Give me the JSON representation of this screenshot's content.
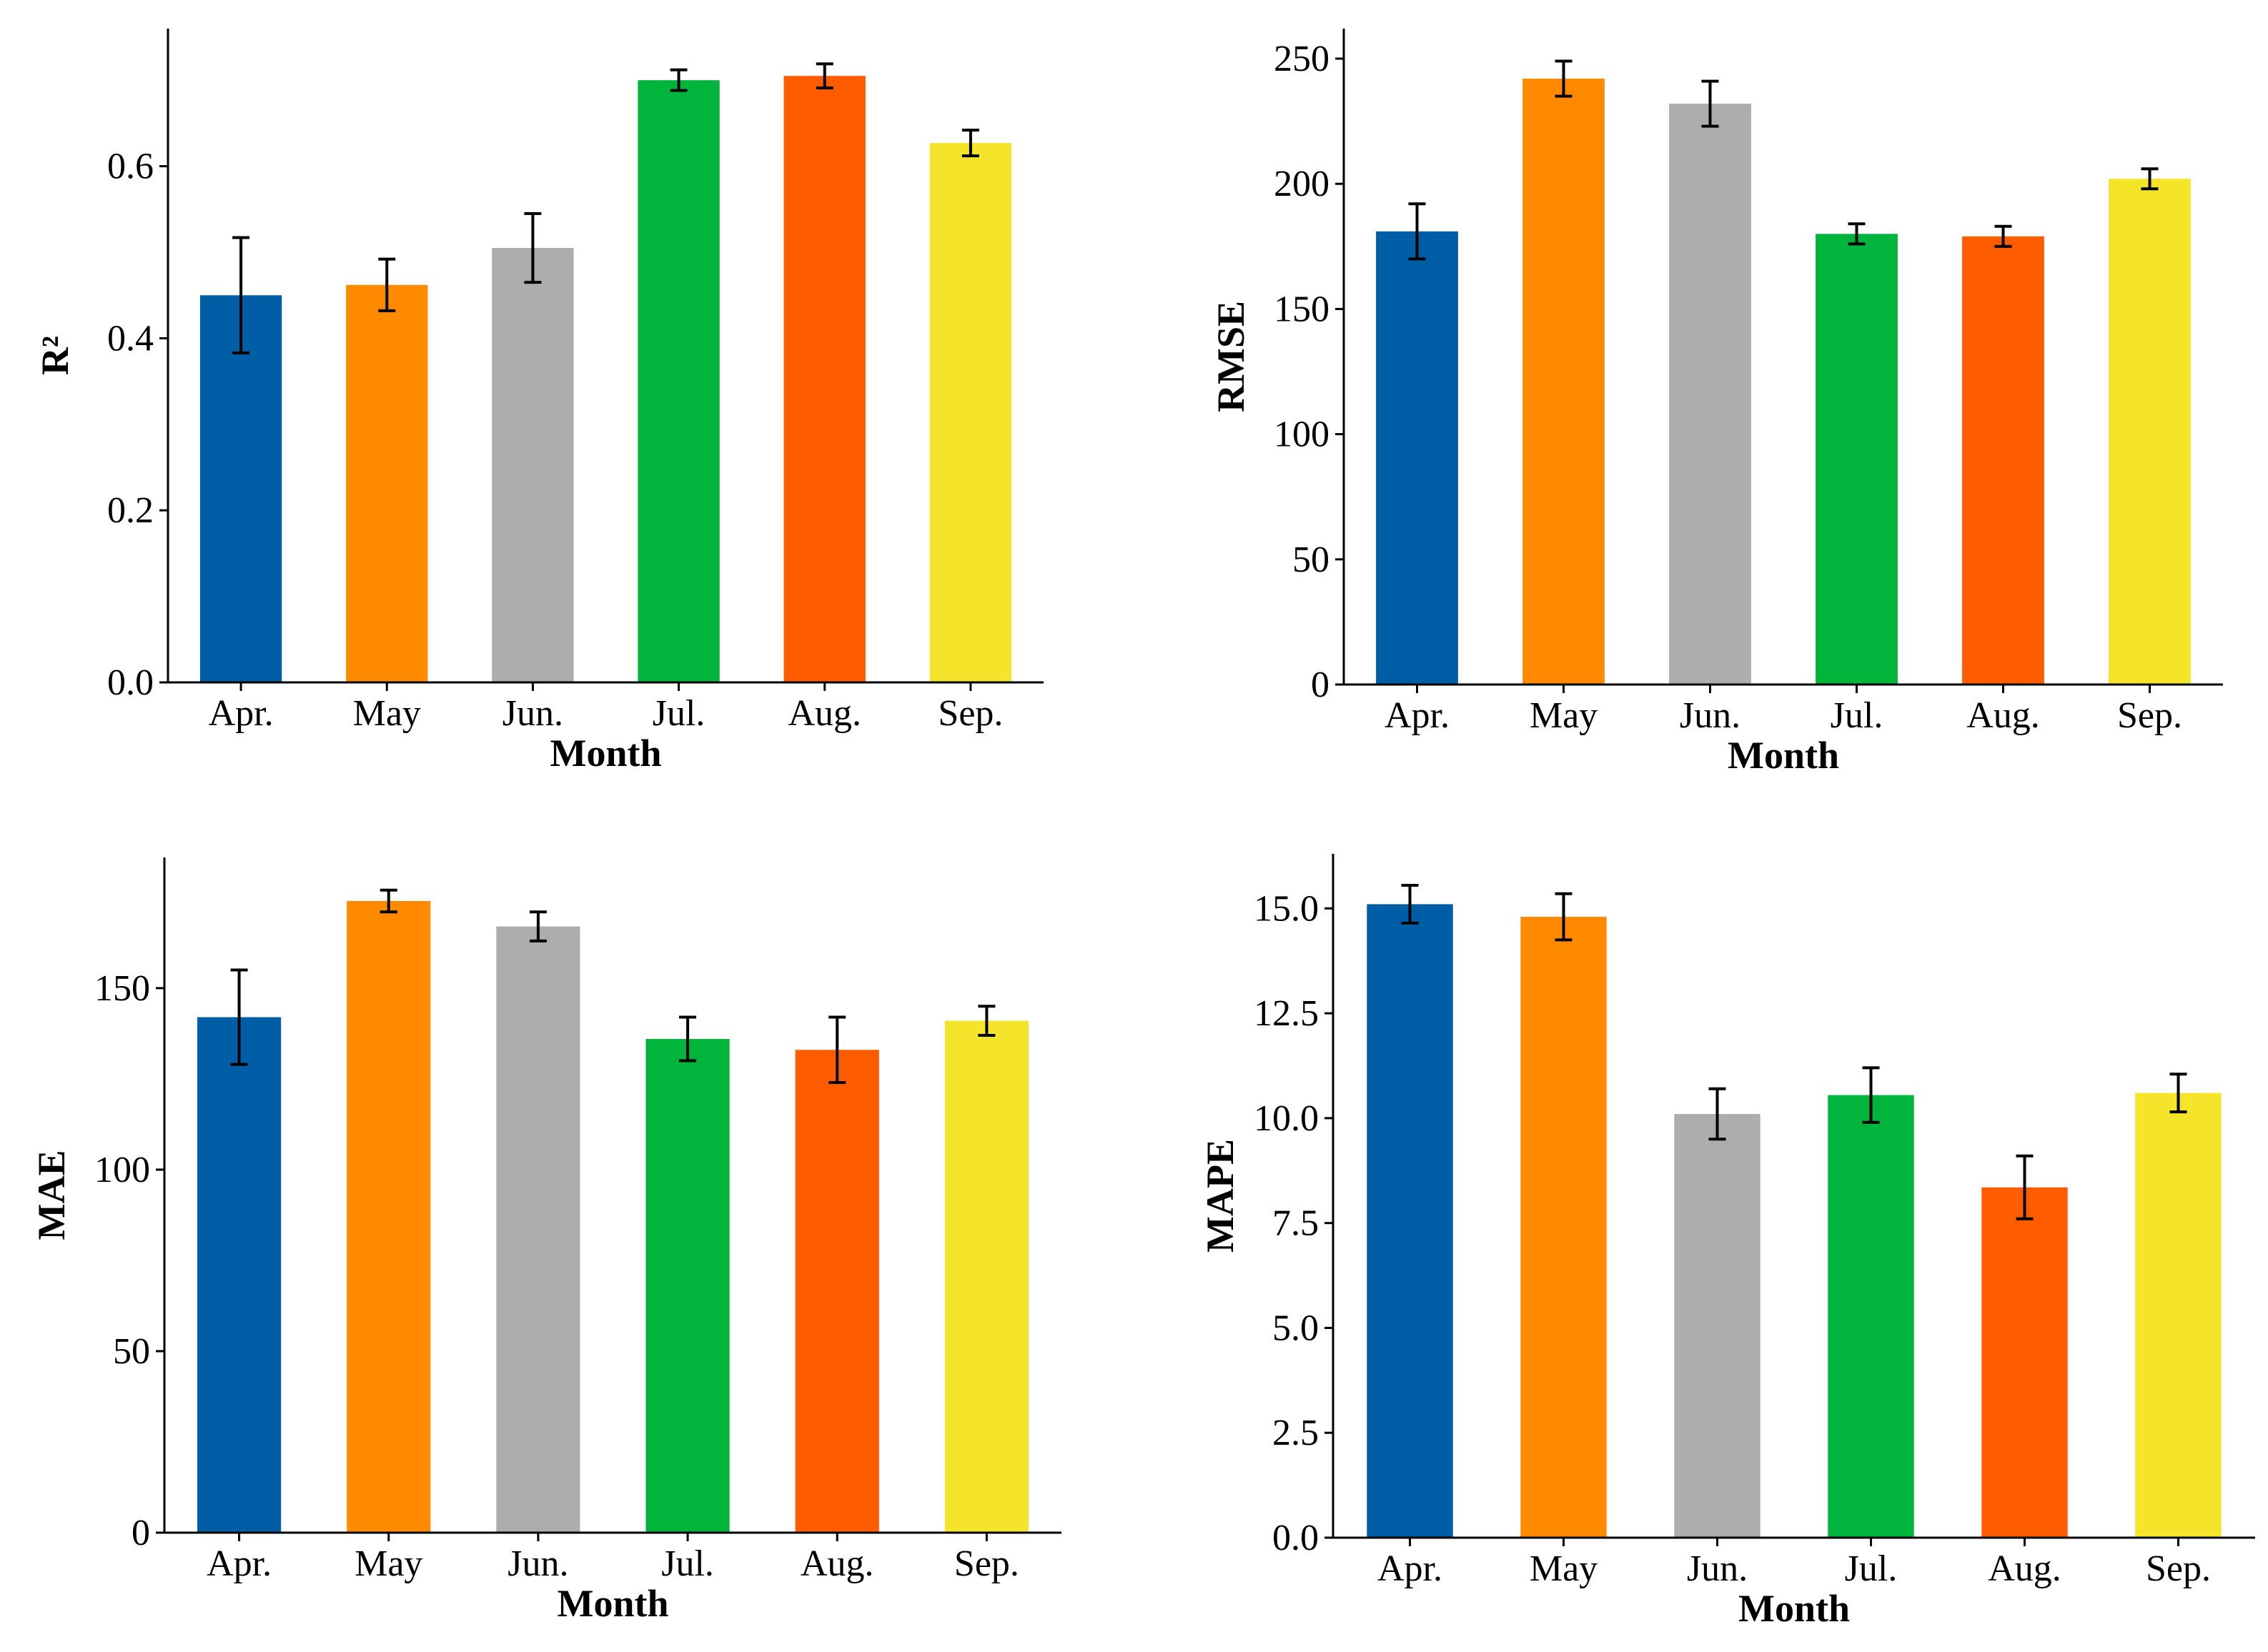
{
  "chart_data": [
    {
      "type": "bar",
      "panel": "top-left",
      "title": "",
      "xlabel": "Month",
      "ylabel": "R²",
      "ylim": [
        0,
        0.76
      ],
      "yticks": [
        0.0,
        0.2,
        0.4,
        0.6
      ],
      "ytick_labels": [
        "0.0",
        "0.2",
        "0.4",
        "0.6"
      ],
      "categories": [
        "Apr.",
        "May",
        "Jun.",
        "Jul.",
        "Aug.",
        "Sep."
      ],
      "values": [
        0.45,
        0.462,
        0.505,
        0.7,
        0.705,
        0.627
      ],
      "errors": [
        0.067,
        0.03,
        0.04,
        0.012,
        0.014,
        0.015
      ],
      "colors": [
        "#005ea6",
        "#ff8a00",
        "#adadad",
        "#00b43c",
        "#ff5c00",
        "#f4e42a"
      ]
    },
    {
      "type": "bar",
      "panel": "top-right",
      "title": "",
      "xlabel": "Month",
      "ylabel": "RMSE",
      "ylim": [
        0,
        262
      ],
      "yticks": [
        0,
        50,
        100,
        150,
        200,
        250
      ],
      "ytick_labels": [
        "0",
        "50",
        "100",
        "150",
        "200",
        "250"
      ],
      "categories": [
        "Apr.",
        "May",
        "Jun.",
        "Jul.",
        "Aug.",
        "Sep."
      ],
      "values": [
        181,
        242,
        232,
        180,
        179,
        202
      ],
      "errors": [
        11,
        7,
        9,
        4,
        4,
        4
      ],
      "colors": [
        "#005ea6",
        "#ff8a00",
        "#adadad",
        "#00b43c",
        "#ff5c00",
        "#f4e42a"
      ]
    },
    {
      "type": "bar",
      "panel": "bottom-left",
      "title": "",
      "xlabel": "Month",
      "ylabel": "MAE",
      "ylim": [
        0,
        186
      ],
      "yticks": [
        0,
        50,
        100,
        150
      ],
      "ytick_labels": [
        "0",
        "50",
        "100",
        "150"
      ],
      "categories": [
        "Apr.",
        "May",
        "Jun.",
        "Jul.",
        "Aug.",
        "Sep."
      ],
      "values": [
        142,
        174,
        167,
        136,
        133,
        141
      ],
      "errors": [
        13,
        3,
        4,
        6,
        9,
        4
      ],
      "colors": [
        "#005ea6",
        "#ff8a00",
        "#adadad",
        "#00b43c",
        "#ff5c00",
        "#f4e42a"
      ]
    },
    {
      "type": "bar",
      "panel": "bottom-right",
      "title": "",
      "xlabel": "Month",
      "ylabel": "MAPE",
      "ylim": [
        0,
        16.3
      ],
      "yticks": [
        0.0,
        2.5,
        5.0,
        7.5,
        10.0,
        12.5,
        15.0
      ],
      "ytick_labels": [
        "0.0",
        "2.5",
        "5.0",
        "7.5",
        "10.0",
        "12.5",
        "15.0"
      ],
      "categories": [
        "Apr.",
        "May",
        "Jun.",
        "Jul.",
        "Aug.",
        "Sep."
      ],
      "values": [
        15.1,
        14.8,
        10.1,
        10.55,
        8.35,
        10.6
      ],
      "errors": [
        0.45,
        0.55,
        0.6,
        0.65,
        0.75,
        0.45
      ],
      "colors": [
        "#005ea6",
        "#ff8a00",
        "#adadad",
        "#00b43c",
        "#ff5c00",
        "#f4e42a"
      ]
    }
  ]
}
